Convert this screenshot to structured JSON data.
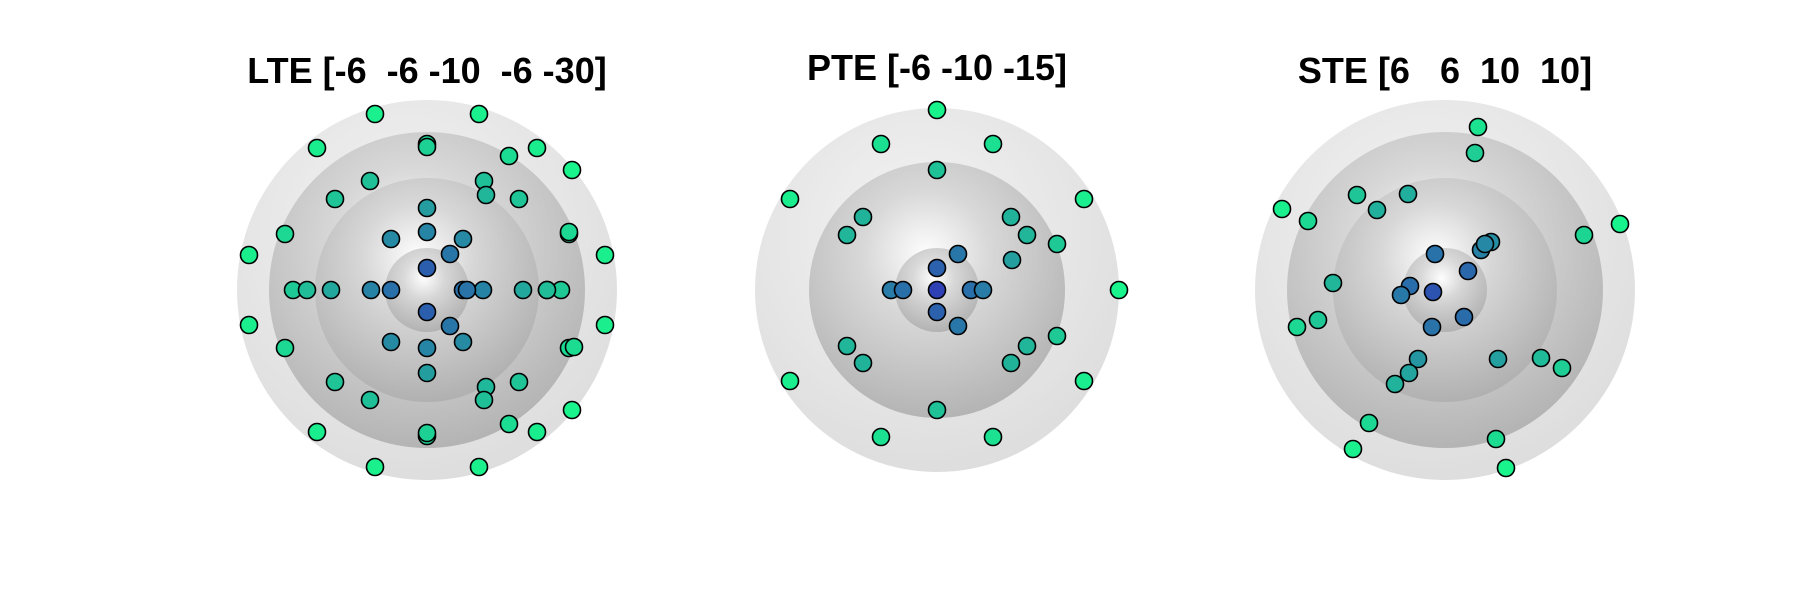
{
  "figure": {
    "panels": [
      {
        "title": "LTE [-6  -6 -10  -6 -30]"
      },
      {
        "title": "PTE [-6 -10 -15]"
      },
      {
        "title": "STE [6   6  10  10]"
      }
    ]
  },
  "colors": {
    "point_outer": "#19f58c",
    "point_inner": "#2f3fb4",
    "sphere_light": "#f0f0f0",
    "sphere_dark": "#aaaaaa",
    "outline": "#000000"
  }
}
